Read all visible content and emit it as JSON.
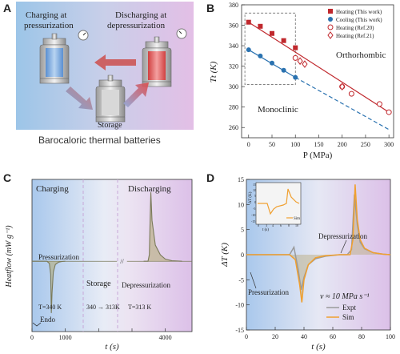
{
  "panels": {
    "A": {
      "letter": "A",
      "charging_label_1": "Charging at",
      "charging_label_2": "pressurization",
      "discharging_label_1": "Discharging at",
      "discharging_label_2": "depressurization",
      "storage_label": "Storage",
      "caption": "Barocaloric thermal batteries"
    },
    "B": {
      "letter": "B",
      "ylabel": "Tt (K)",
      "xlabel": "P (MPa)",
      "phase_upper": "Orthorhombic",
      "phase_lower": "Monoclinic",
      "legend": [
        "Heating (This work)",
        "Cooling (This work)",
        "Heating (Ref.20)",
        "Heating (Ref.21)"
      ]
    },
    "C": {
      "letter": "C",
      "ylabel": "Heatflow (mW g⁻¹)",
      "xlabel": "t (s)",
      "charging": "Charging",
      "discharging": "Discharging",
      "pressurization": "Pressurization",
      "storage": "Storage",
      "depressurization": "Depressurization",
      "t_charge": "T=340 K",
      "t_storage": "340 → 313K",
      "t_discharge": "T=313 K",
      "endo": "Endo"
    },
    "D": {
      "letter": "D",
      "ylabel": "ΔT (K)",
      "xlabel": "t (s)",
      "pressurization": "Pressurization",
      "depressurization": "Depressurization",
      "rate": "v ≈ 10 MPa s⁻¹",
      "legend": [
        "Expt",
        "Sim"
      ],
      "inset_ylabel": "ΔT (K)",
      "inset_xlabel": "t (s)",
      "inset_legend": "Sim",
      "inset_xticks": [
        "0",
        "3",
        "4",
        "6",
        "8",
        "10"
      ],
      "inset_yticks": [
        "15",
        "10",
        "5",
        "0",
        "-5",
        "-10",
        "-15"
      ]
    }
  },
  "chart_data": [
    {
      "type": "scatter",
      "panel": "B",
      "xlabel": "P (MPa)",
      "ylabel": "Tt (K)",
      "xlim": [
        -15,
        310
      ],
      "ylim": [
        250,
        380
      ],
      "xticks": [
        0,
        50,
        100,
        150,
        200,
        250,
        300
      ],
      "yticks": [
        260,
        280,
        300,
        320,
        340,
        360,
        380
      ],
      "series": [
        {
          "name": "Heating (This work)",
          "color": "#c0282d",
          "marker": "square-filled",
          "x": [
            0,
            25,
            50,
            75,
            100
          ],
          "y": [
            363,
            359,
            352,
            345,
            338
          ]
        },
        {
          "name": "Cooling (This work)",
          "color": "#2a72b0",
          "marker": "circle-filled",
          "x": [
            0,
            25,
            50,
            75,
            100
          ],
          "y": [
            336,
            330,
            323,
            316,
            309
          ]
        },
        {
          "name": "Heating (Ref.20)",
          "color": "#c0282d",
          "marker": "circle-open",
          "x": [
            100,
            200,
            220,
            280,
            300
          ],
          "y": [
            328,
            300,
            293,
            283,
            275
          ]
        },
        {
          "name": "Heating (Ref.21)",
          "color": "#c0282d",
          "marker": "diamond-open",
          "x": [
            110,
            120,
            200
          ],
          "y": [
            325,
            322,
            300
          ]
        }
      ],
      "fits": [
        {
          "color": "#c0282d",
          "dash": false,
          "x": [
            0,
            300
          ],
          "y": [
            363,
            275
          ]
        },
        {
          "color": "#2a72b0",
          "dash": false,
          "x": [
            0,
            100
          ],
          "y": [
            336,
            309
          ]
        },
        {
          "color": "#2a72b0",
          "dash": true,
          "x": [
            100,
            300
          ],
          "y": [
            309,
            258
          ]
        }
      ]
    },
    {
      "type": "line",
      "panel": "C",
      "xlabel": "t (s)",
      "ylabel": "Heatflow (mW g⁻¹)",
      "xlim": [
        0,
        4800
      ],
      "xticks": [
        0,
        1000,
        2000,
        3000,
        4000
      ],
      "xticklabels": [
        "0",
        "1000",
        "",
        "",
        "4000"
      ],
      "series": [
        {
          "name": "heatflow-charging",
          "color": "#7a7a5a",
          "x": [
            0,
            450,
            520,
            560,
            580,
            600,
            640,
            700,
            800,
            900,
            1000
          ],
          "y": [
            0,
            0,
            -20,
            -120,
            -480,
            -300,
            -100,
            -30,
            -8,
            -2,
            0
          ]
        },
        {
          "name": "heatflow-discharging",
          "color": "#7a7a5a",
          "x": [
            3350,
            3480,
            3520,
            3545,
            3565,
            3600,
            3700,
            3850,
            4000,
            4200,
            4500
          ],
          "y": [
            0,
            0,
            60,
            400,
            640,
            380,
            150,
            60,
            20,
            5,
            0
          ]
        }
      ]
    },
    {
      "type": "line",
      "panel": "D",
      "xlabel": "t (s)",
      "ylabel": "ΔT (K)",
      "xlim": [
        0,
        100
      ],
      "ylim": [
        -15,
        15
      ],
      "xticks": [
        0,
        20,
        40,
        60,
        80,
        100
      ],
      "yticks": [
        -15,
        -10,
        -5,
        0,
        5,
        10,
        15
      ],
      "series": [
        {
          "name": "Expt",
          "color": "#9a9a9a",
          "x": [
            0,
            30,
            33,
            36,
            38,
            40,
            43,
            48,
            55,
            65,
            70,
            73,
            75,
            77,
            79,
            82,
            88,
            95,
            100
          ],
          "y": [
            0,
            0,
            1.5,
            -3,
            -7,
            -4.5,
            -2,
            -0.8,
            -0.3,
            0,
            0,
            1,
            12,
            6,
            2.5,
            1.2,
            0.4,
            0.1,
            0
          ]
        },
        {
          "name": "Sim",
          "color": "#f0a030",
          "x": [
            0,
            30,
            34,
            37,
            38.5,
            40,
            43,
            48,
            55,
            65,
            72,
            74,
            75.5,
            77,
            79,
            82,
            88,
            95,
            100
          ],
          "y": [
            0,
            0,
            -1,
            -6,
            -9.5,
            -5,
            -2,
            -0.6,
            -0.2,
            0,
            0,
            3,
            14,
            7,
            3,
            1.3,
            0.4,
            0.1,
            0
          ]
        }
      ]
    }
  ]
}
